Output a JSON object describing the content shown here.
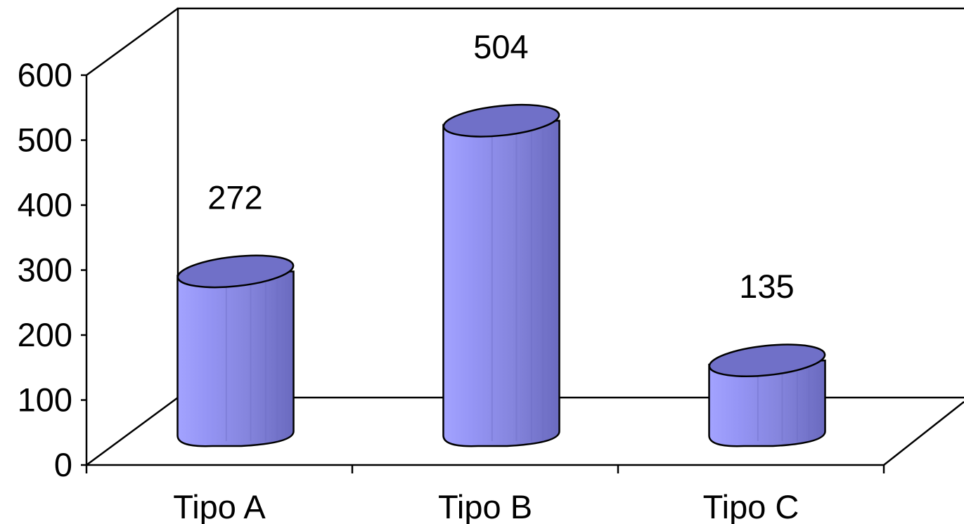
{
  "chart_data": {
    "type": "bar",
    "style": "3d-cylinder",
    "categories": [
      "Tipo A",
      "Tipo B",
      "Tipo C"
    ],
    "values": [
      272,
      504,
      135
    ],
    "data_labels": [
      "272",
      "504",
      "135"
    ],
    "title": "",
    "xlabel": "",
    "ylabel": "",
    "ylim": [
      0,
      600
    ],
    "yticks": [
      "0",
      "100",
      "200",
      "300",
      "400",
      "500",
      "600"
    ],
    "grid": false,
    "legend": "none",
    "colors": {
      "bar_light": "#9999ff",
      "bar_mid": "#8a8ae6",
      "bar_dark": "#6b6bc2",
      "bar_top": "#7070c8",
      "outline": "#000000",
      "axis": "#000000"
    }
  }
}
